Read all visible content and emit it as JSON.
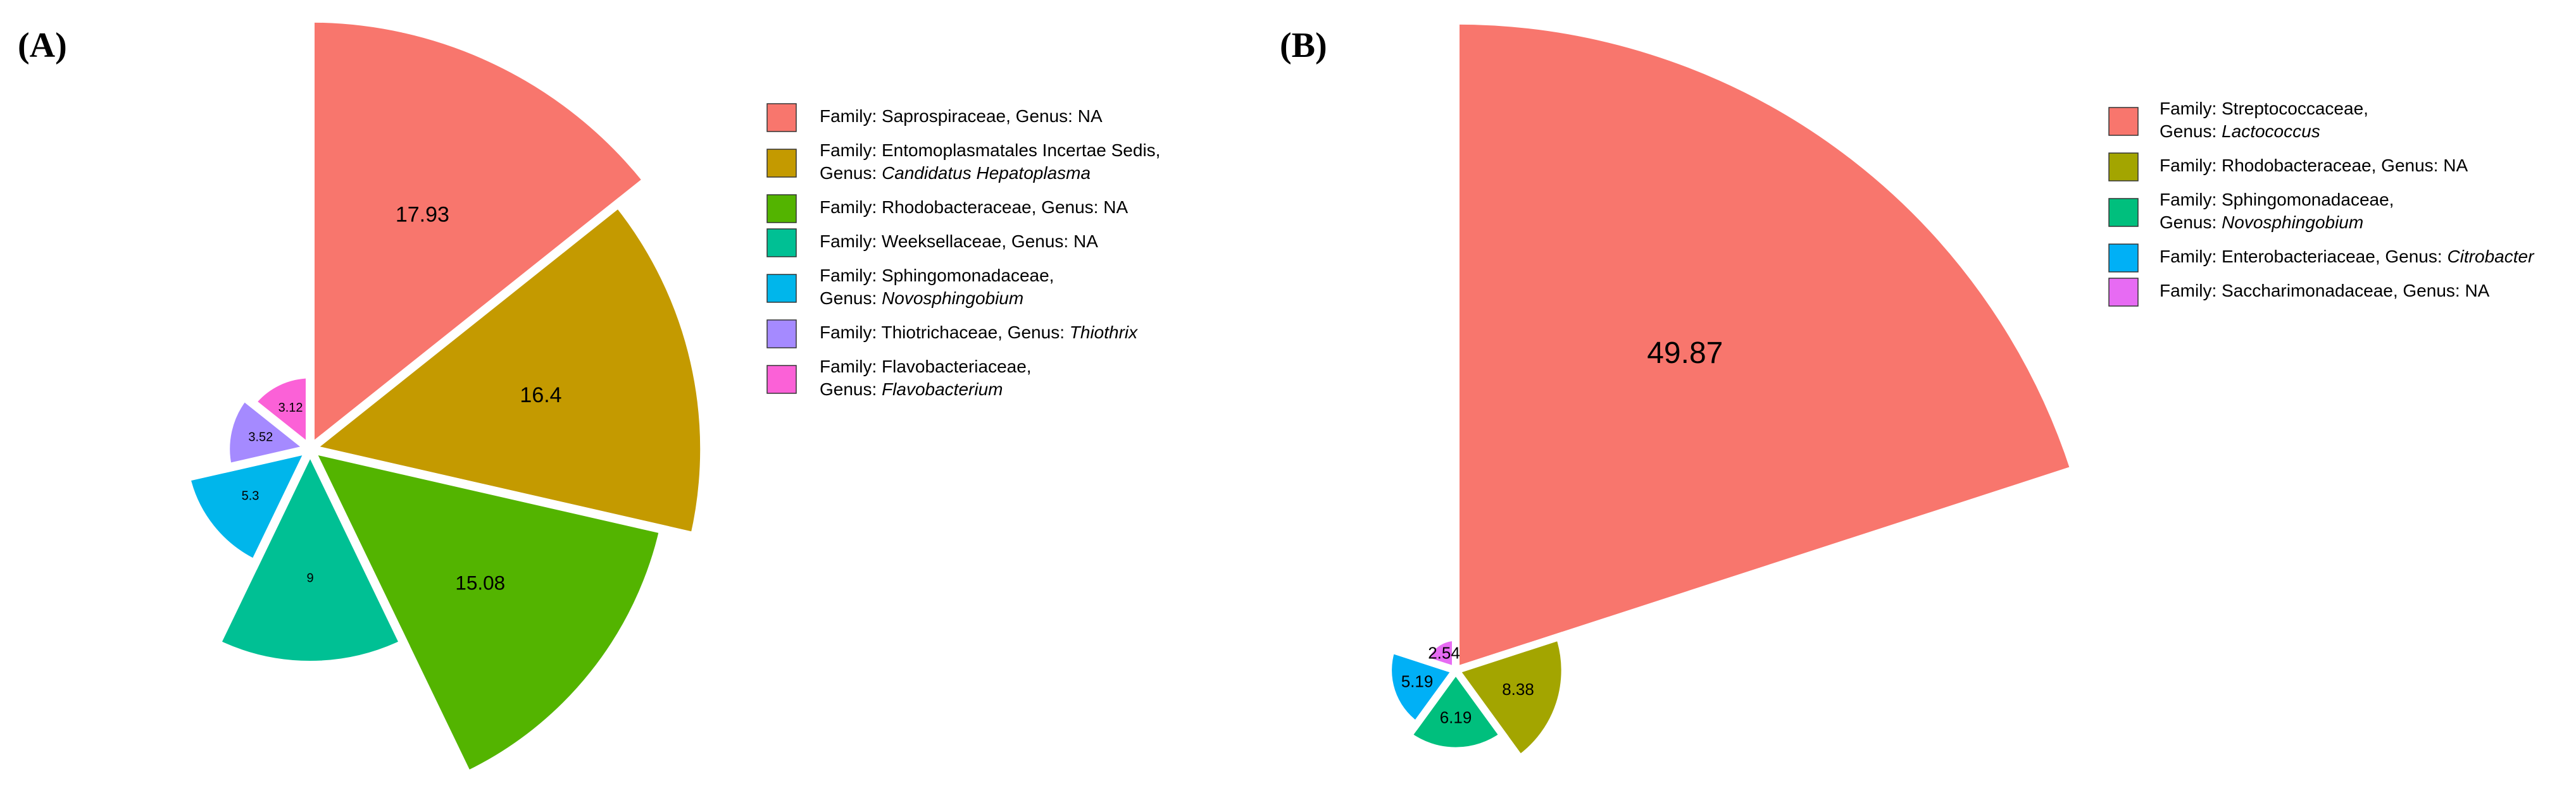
{
  "chart_data": [
    {
      "type": "pie",
      "subtype": "polar-area",
      "panel_label": "(A)",
      "series": [
        {
          "family": "Saprospiraceae",
          "genus": "NA",
          "genus_italic": false,
          "value": 17.93,
          "color": "#F8766D"
        },
        {
          "family": "Entomoplasmatales Incertae Sedis",
          "genus": "Candidatus Hepatoplasma",
          "genus_italic": true,
          "value": 16.4,
          "color": "#C49A00"
        },
        {
          "family": "Rhodobacteraceae",
          "genus": "NA",
          "genus_italic": false,
          "value": 15.08,
          "color": "#53B400"
        },
        {
          "family": "Weeksellaceae",
          "genus": "NA",
          "genus_italic": false,
          "value": 9,
          "color": "#00C094"
        },
        {
          "family": "Sphingomonadaceae",
          "genus": "Novosphingobium",
          "genus_italic": true,
          "value": 5.3,
          "color": "#00B6EB"
        },
        {
          "family": "Thiotrichaceae",
          "genus": "Thiothrix",
          "genus_italic": true,
          "value": 3.52,
          "color": "#A58AFF"
        },
        {
          "family": "Flavobacteriaceae",
          "genus": "Flavobacterium",
          "genus_italic": true,
          "value": 3.12,
          "color": "#FB61D7"
        }
      ],
      "legend_lines": [
        [
          {
            "t": "Family: Saprospiraceae, Genus: NA",
            "i": false
          }
        ],
        [
          {
            "t": "Family: Entomoplasmatales Incertae Sedis,",
            "i": false
          }
        ],
        [
          {
            "t": "Genus: ",
            "i": false
          },
          {
            "t": "Candidatus Hepatoplasma",
            "i": true
          }
        ],
        [
          {
            "t": "Family: Rhodobacteraceae, Genus: NA",
            "i": false
          }
        ],
        [
          {
            "t": "Family: Weeksellaceae, Genus: NA",
            "i": false
          }
        ],
        [
          {
            "t": "Family: Sphingomonadaceae,",
            "i": false
          }
        ],
        [
          {
            "t": "Genus: ",
            "i": false
          },
          {
            "t": "Novosphingobium",
            "i": true
          }
        ],
        [
          {
            "t": "Family: Thiotrichaceae, Genus: ",
            "i": false
          },
          {
            "t": "Thiothrix",
            "i": true
          }
        ],
        [
          {
            "t": "Family: Flavobacteriaceae,",
            "i": false
          }
        ],
        [
          {
            "t": "Genus: ",
            "i": false
          },
          {
            "t": "Flavobacterium",
            "i": true
          }
        ]
      ]
    },
    {
      "type": "pie",
      "subtype": "polar-area",
      "panel_label": "(B)",
      "series": [
        {
          "family": "Streptococcaceae",
          "genus": "Lactococcus",
          "genus_italic": true,
          "value": 49.87,
          "color": "#F8766D"
        },
        {
          "family": "Rhodobacteraceae",
          "genus": "NA",
          "genus_italic": false,
          "value": 8.38,
          "color": "#A3A500"
        },
        {
          "family": "Sphingomonadaceae",
          "genus": "Novosphingobium",
          "genus_italic": true,
          "value": 6.19,
          "color": "#00BF7D"
        },
        {
          "family": "Enterobacteriaceae",
          "genus": "Citrobacter",
          "genus_italic": true,
          "value": 5.19,
          "color": "#00B0F6"
        },
        {
          "family": "Saccharimonadaceae",
          "genus": "NA",
          "genus_italic": false,
          "value": 2.54,
          "color": "#E76BF3"
        }
      ],
      "legend_lines": [
        [
          {
            "t": "Family: Streptococcaceae,",
            "i": false
          }
        ],
        [
          {
            "t": "Genus: ",
            "i": false
          },
          {
            "t": "Lactococcus",
            "i": true
          }
        ],
        [
          {
            "t": "Family: Rhodobacteraceae, Genus: NA",
            "i": false
          }
        ],
        [
          {
            "t": "Family: Sphingomonadaceae,",
            "i": false
          }
        ],
        [
          {
            "t": "Genus: ",
            "i": false
          },
          {
            "t": "Novosphingobium",
            "i": true
          }
        ],
        [
          {
            "t": "Family: Enterobacteriaceae, Genus: ",
            "i": false
          },
          {
            "t": "Citrobacter",
            "i": true
          }
        ],
        [
          {
            "t": "Family: Saccharimonadaceae, Genus: NA",
            "i": false
          }
        ]
      ]
    }
  ]
}
